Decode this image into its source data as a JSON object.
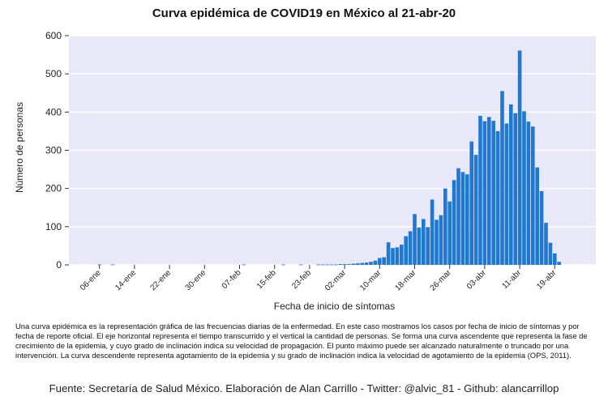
{
  "chart_data": {
    "type": "bar",
    "title": "Curva epidémica de COVID19 en México al 21-abr-20",
    "xlabel": "Fecha de inicio de síntomas",
    "ylabel": "Número de personas",
    "ylim": [
      0,
      600
    ],
    "yticks": [
      0,
      100,
      200,
      300,
      400,
      500,
      600
    ],
    "xtick_labels": [
      "06-ene",
      "14-ene",
      "22-ene",
      "30-ene",
      "07-feb",
      "15-feb",
      "23-feb",
      "02-mar",
      "10-mar",
      "18-mar",
      "26-mar",
      "03-abr",
      "11-abr",
      "19-abr"
    ],
    "xtick_offsets": [
      6,
      14,
      22,
      30,
      38,
      46,
      54,
      62,
      70,
      78,
      86,
      94,
      102,
      110
    ],
    "grid": true,
    "color": "#1f78d1",
    "background": "#e8e8f8",
    "values": [
      0,
      0,
      0,
      0,
      0,
      0,
      1,
      0,
      0,
      1,
      0,
      0,
      0,
      0,
      0,
      0,
      0,
      0,
      0,
      0,
      0,
      0,
      0,
      0,
      0,
      0,
      0,
      0,
      0,
      0,
      0,
      0,
      0,
      0,
      0,
      0,
      0,
      0,
      0,
      1,
      0,
      0,
      0,
      0,
      0,
      0,
      0,
      0,
      1,
      0,
      0,
      0,
      1,
      0,
      0,
      0,
      1,
      1,
      1,
      1,
      1,
      2,
      2,
      2,
      3,
      4,
      5,
      6,
      8,
      11,
      18,
      20,
      59,
      44,
      46,
      53,
      75,
      88,
      133,
      98,
      120,
      99,
      171,
      118,
      130,
      200,
      166,
      222,
      253,
      243,
      237,
      323,
      288,
      390,
      376,
      387,
      377,
      350,
      455,
      370,
      420,
      397,
      561,
      402,
      375,
      362,
      255,
      193,
      110,
      58,
      30,
      8
    ]
  },
  "description": "Una curva epidémica es la representación gráfica de las frecuencias diarias de la enfermedad. En este caso mostramos los casos por fecha de inicio de síntomas y por fecha de reporte oficial. El eje horizontal representa el tiempo transcurrido y el vertical la cantidad de personas. Se forma una curva ascendente que representa la fase de crecimiento de la epidemia, y cuyo  grado de inclinación indica su velocidad de propagación. El punto máximo puede ser alcanzado naturalmente o truncado por una intervención. La curva descendente representa agotamiento de la epidemia y su grado de inclinación indica la velocidad de agotamiento de la epidemia (OPS, 2011).",
  "source": "Fuente: Secretaría de Salud México. Elaboración de Alan Carrillo - Twitter: @alvic_81 - Github: alancarrillop"
}
